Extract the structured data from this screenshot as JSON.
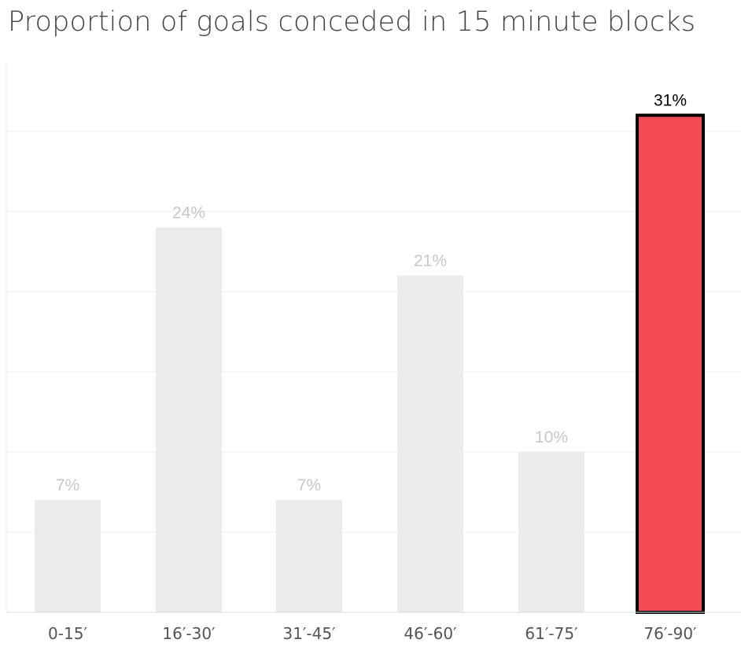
{
  "chart_data": {
    "type": "bar",
    "title": "Proportion of goals conceded in 15 minute blocks",
    "categories": [
      "0-15′",
      "16′-30′",
      "31′-45′",
      "46′-60′",
      "61′-75′",
      "76′-90′"
    ],
    "values": [
      7,
      24,
      7,
      21,
      10,
      31
    ],
    "value_labels": [
      "7%",
      "24%",
      "7%",
      "21%",
      "10%",
      "31%"
    ],
    "highlight_category": "76′-90′",
    "ylim": [
      0,
      34
    ],
    "grid": true,
    "colors": {
      "bar": "#ebebeb",
      "bar_label": "#c8c8c8",
      "highlight": "#f24b53",
      "highlight_border": "#000000",
      "highlight_label": "#000000",
      "gridline": "#eeeeee",
      "axis": "#dddddd"
    }
  }
}
